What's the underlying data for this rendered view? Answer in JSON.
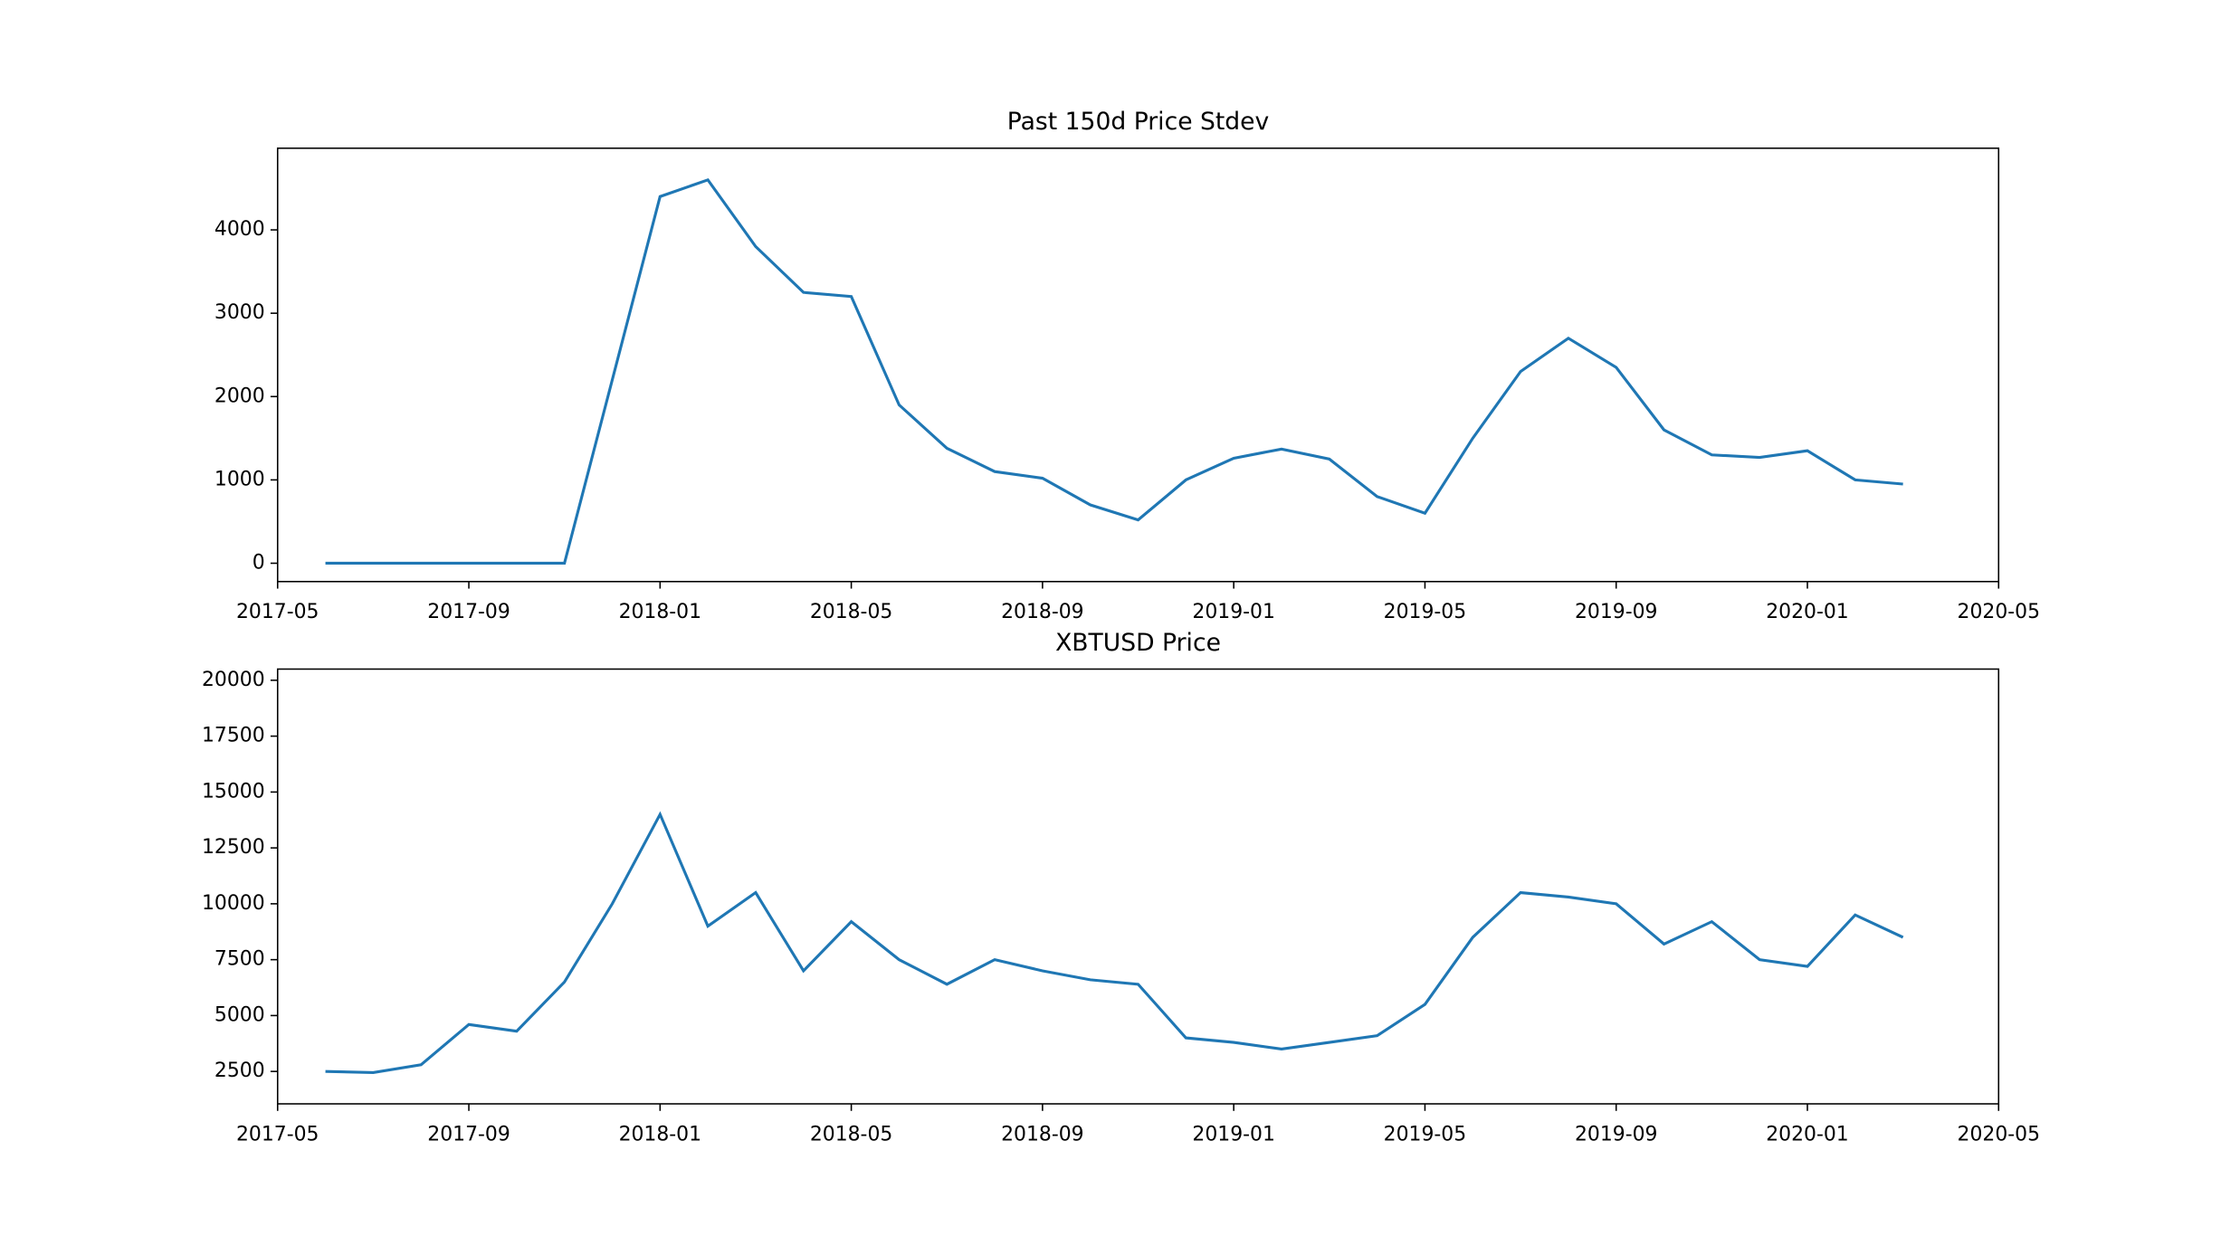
{
  "chart_data": [
    {
      "type": "line",
      "title": "Past 150d Price Stdev",
      "x": [
        "2017-06",
        "2017-07",
        "2017-08",
        "2017-09",
        "2017-10",
        "2017-11",
        "2017-12",
        "2018-01",
        "2018-02",
        "2018-03",
        "2018-04",
        "2018-05",
        "2018-06",
        "2018-07",
        "2018-08",
        "2018-09",
        "2018-10",
        "2018-11",
        "2018-12",
        "2019-01",
        "2019-02",
        "2019-03",
        "2019-04",
        "2019-05",
        "2019-06",
        "2019-07",
        "2019-08",
        "2019-09",
        "2019-10",
        "2019-11",
        "2019-12",
        "2020-01",
        "2020-02",
        "2020-03"
      ],
      "series": [
        {
          "color": "#1f77b4",
          "values": [
            0,
            0,
            0,
            0,
            0,
            0,
            2200,
            4400,
            4600,
            3800,
            3250,
            3200,
            1900,
            1380,
            1100,
            1020,
            700,
            520,
            1000,
            1260,
            1370,
            1250,
            800,
            600,
            1500,
            2300,
            2700,
            2350,
            1600,
            1300,
            1270,
            1350,
            1000,
            950
          ]
        }
      ],
      "xlim": [
        "2017-05",
        "2020-05"
      ],
      "xticks": [
        "2017-05",
        "2017-09",
        "2018-01",
        "2018-05",
        "2018-09",
        "2019-01",
        "2019-05",
        "2019-09",
        "2020-01",
        "2020-05"
      ],
      "ylim": [
        -220,
        4980
      ],
      "yticks": [
        0,
        1000,
        2000,
        3000,
        4000
      ]
    },
    {
      "type": "line",
      "title": "XBTUSD Price",
      "x": [
        "2017-06",
        "2017-07",
        "2017-08",
        "2017-09",
        "2017-10",
        "2017-11",
        "2017-12",
        "2018-01",
        "2018-02",
        "2018-03",
        "2018-04",
        "2018-05",
        "2018-06",
        "2018-07",
        "2018-08",
        "2018-09",
        "2018-10",
        "2018-11",
        "2018-12",
        "2019-01",
        "2019-02",
        "2019-03",
        "2019-04",
        "2019-05",
        "2019-06",
        "2019-07",
        "2019-08",
        "2019-09",
        "2019-10",
        "2019-11",
        "2019-12",
        "2020-01",
        "2020-02",
        "2020-03"
      ],
      "series": [
        {
          "color": "#1f77b4",
          "values": [
            2500,
            2450,
            2800,
            4600,
            4300,
            6500,
            10000,
            14000,
            9000,
            10500,
            7000,
            9200,
            7500,
            6400,
            7500,
            7000,
            6600,
            6400,
            4000,
            3800,
            3500,
            3800,
            4100,
            5500,
            8500,
            10500,
            10300,
            10000,
            8200,
            9200,
            7500,
            7200,
            9500,
            8500
          ]
        }
      ],
      "xlim": [
        "2017-05",
        "2020-05"
      ],
      "xticks": [
        "2017-05",
        "2017-09",
        "2018-01",
        "2018-05",
        "2018-09",
        "2019-01",
        "2019-05",
        "2019-09",
        "2020-01",
        "2020-05"
      ],
      "ylim": [
        1050,
        20500
      ],
      "yticks": [
        2500,
        5000,
        7500,
        10000,
        12500,
        15000,
        17500,
        20000
      ]
    }
  ]
}
